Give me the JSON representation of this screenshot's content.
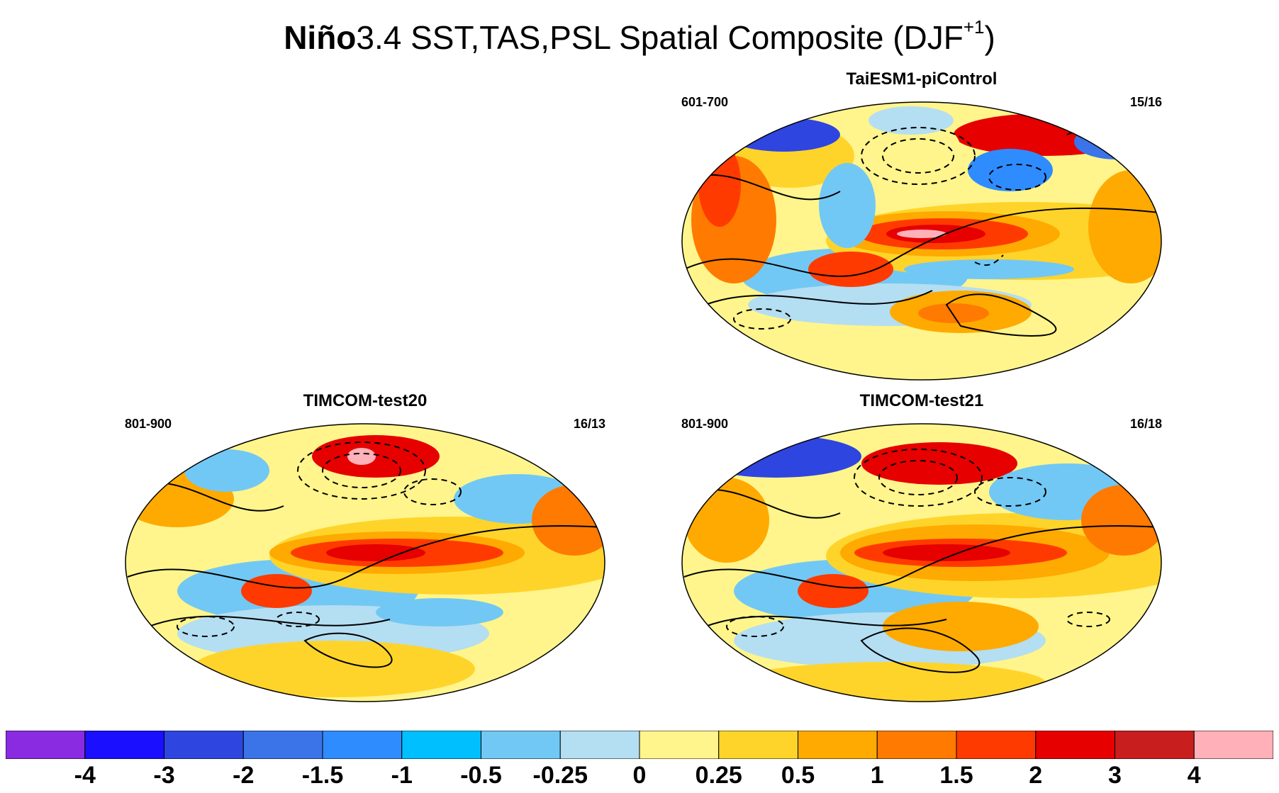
{
  "title": {
    "bold_part": "Niño",
    "rest": "3.4 SST,TAS,PSL Spatial Composite (DJF",
    "superscript": "+1",
    "closing": ")"
  },
  "panels": [
    {
      "id": "taiesm",
      "title": "TaiESM1-piControl",
      "years": "601-700",
      "count": "15/16"
    },
    {
      "id": "test20",
      "title": "TIMCOM-test20",
      "years": "801-900",
      "count": "16/13"
    },
    {
      "id": "test21",
      "title": "TIMCOM-test21",
      "years": "801-900",
      "count": "16/18"
    }
  ],
  "colorbar": {
    "colors": [
      "#8a2be2",
      "#1a0fff",
      "#2f45e0",
      "#3a74e8",
      "#2f8cff",
      "#00bfff",
      "#72c8f4",
      "#b4def2",
      "#fff58c",
      "#ffd42a",
      "#ffaa00",
      "#ff7a00",
      "#ff3a00",
      "#e60000",
      "#c81e1e",
      "#ffb0b8"
    ],
    "labels": [
      "-4",
      "-3",
      "-2",
      "-1.5",
      "-1",
      "-0.5",
      "-0.25",
      "0",
      "0.25",
      "0.5",
      "1",
      "1.5",
      "2",
      "3",
      "4"
    ]
  }
}
